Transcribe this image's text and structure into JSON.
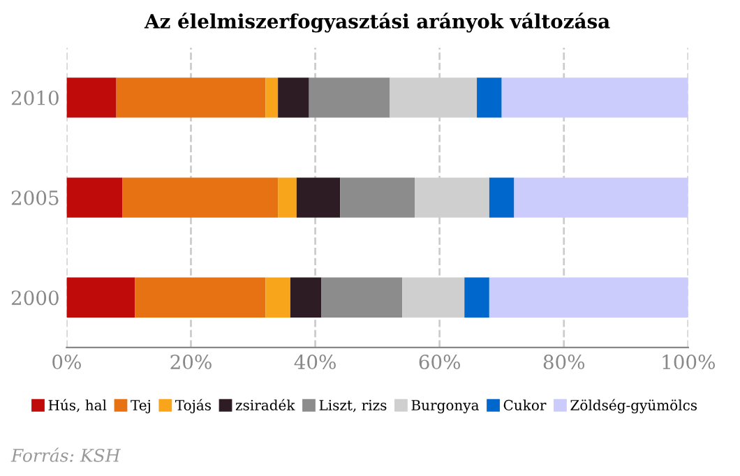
{
  "chart_data": {
    "type": "bar",
    "orientation": "horizontal",
    "stacked": true,
    "title": "Az élelmiszerfogyasztási arányok változása",
    "categories": [
      "2010",
      "2005",
      "2000"
    ],
    "series": [
      {
        "name": "Hús, hal",
        "color": "#c00b0b",
        "values": [
          8,
          9,
          11
        ]
      },
      {
        "name": "Tej",
        "color": "#e67214",
        "values": [
          24,
          25,
          21
        ]
      },
      {
        "name": "Tojás",
        "color": "#f8a51c",
        "values": [
          2,
          3,
          4
        ]
      },
      {
        "name": "zsiradék",
        "color": "#2e1c24",
        "values": [
          5,
          7,
          5
        ]
      },
      {
        "name": "Liszt, rizs",
        "color": "#8c8c8c",
        "values": [
          13,
          12,
          13
        ]
      },
      {
        "name": "Burgonya",
        "color": "#cfcfcf",
        "values": [
          14,
          12,
          10
        ]
      },
      {
        "name": "Cukor",
        "color": "#0068cc",
        "values": [
          4,
          4,
          4
        ]
      },
      {
        "name": "Zöldség-gyümölcs",
        "color": "#ccccfc",
        "values": [
          30,
          28,
          32
        ]
      }
    ],
    "xlim": [
      0,
      100
    ],
    "xticks": [
      {
        "value": 0,
        "label": "0%"
      },
      {
        "value": 20,
        "label": "20%"
      },
      {
        "value": 40,
        "label": "40%"
      },
      {
        "value": 60,
        "label": "60%"
      },
      {
        "value": 80,
        "label": "80%"
      },
      {
        "value": 100,
        "label": "100%"
      }
    ],
    "grid": "x",
    "legend": "bottom",
    "annotations": [
      "Forrás: KSH"
    ]
  }
}
